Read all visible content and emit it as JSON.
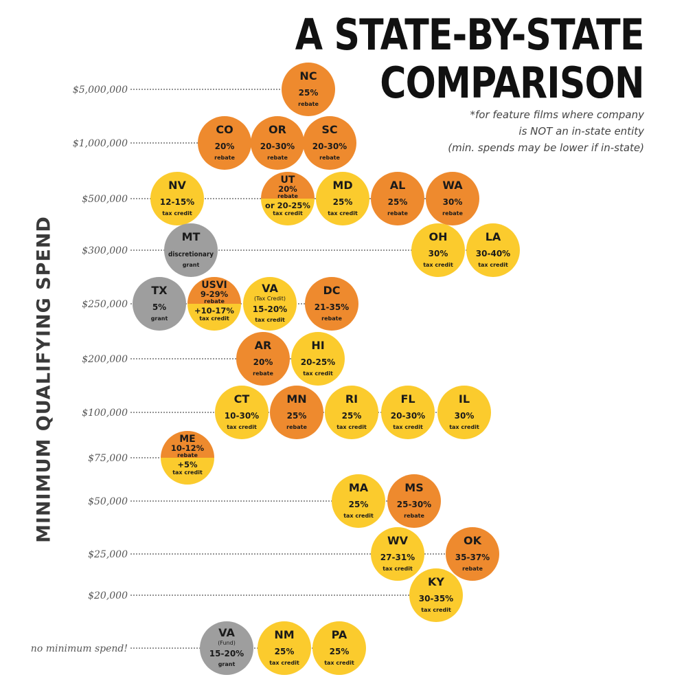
{
  "header": {
    "title_line1": "A STATE-BY-STATE",
    "title_line2": "COMPARISON",
    "note_line1": "*for feature films where company",
    "note_line2": "is NOT an in-state entity",
    "note_line3": "(min. spends may be lower if in-state)"
  },
  "chart_data": {
    "type": "scatter",
    "title": "A STATE-BY-STATE COMPARISON",
    "ylabel": "MINIMUM QUALIFYING SPEND",
    "colors": {
      "rebate": "#EE8A2E",
      "tax_credit": "#FBCB2D",
      "grant": "#9E9E9E",
      "line": "#555555"
    },
    "categories": [
      "$5,000,000",
      "$1,000,000",
      "$500,000",
      "$300,000",
      "$250,000",
      "$200,000",
      "$100,000",
      "$75,000",
      "$50,000",
      "$25,000",
      "$20,000",
      "no minimum spend!"
    ],
    "rows": [
      {
        "label": "$5,000,000",
        "states": [
          {
            "state": "NC",
            "kind": "rebate",
            "value": "25%",
            "type_label": "rebate"
          }
        ]
      },
      {
        "label": "$1,000,000",
        "states": [
          {
            "state": "CO",
            "kind": "rebate",
            "value": "20%",
            "type_label": "rebate"
          },
          {
            "state": "OR",
            "kind": "rebate",
            "value": "20-30%",
            "type_label": "rebate"
          },
          {
            "state": "SC",
            "kind": "rebate",
            "value": "20-30%",
            "type_label": "rebate"
          }
        ]
      },
      {
        "label": "$500,000",
        "states": [
          {
            "state": "NV",
            "kind": "tax_credit",
            "value": "12-15%",
            "type_label": "tax credit"
          },
          {
            "state": "UT",
            "kind": "split",
            "value": "20%",
            "type_label": "rebate",
            "value2": "or 20-25%",
            "type_label2": "tax credit"
          },
          {
            "state": "MD",
            "kind": "tax_credit",
            "value": "25%",
            "type_label": "tax credit"
          },
          {
            "state": "AL",
            "kind": "rebate",
            "value": "25%",
            "type_label": "rebate"
          },
          {
            "state": "WA",
            "kind": "rebate",
            "value": "30%",
            "type_label": "rebate"
          }
        ]
      },
      {
        "label": "$300,000",
        "states": [
          {
            "state": "MT",
            "kind": "grant",
            "value": "discretionary",
            "type_label": "grant"
          },
          {
            "state": "OH",
            "kind": "tax_credit",
            "value": "30%",
            "type_label": "tax credit"
          },
          {
            "state": "LA",
            "kind": "tax_credit",
            "value": "30-40%",
            "type_label": "tax credit"
          }
        ]
      },
      {
        "label": "$250,000",
        "states": [
          {
            "state": "TX",
            "kind": "grant",
            "value": "5%",
            "type_label": "grant"
          },
          {
            "state": "USVI",
            "kind": "split",
            "value": "9-29%",
            "type_label": "rebate",
            "value2": "+10-17%",
            "type_label2": "tax credit"
          },
          {
            "state": "VA",
            "kind": "tax_credit",
            "sub": "(Tax Credit)",
            "value": "15-20%",
            "type_label": "tax credit"
          },
          {
            "state": "DC",
            "kind": "rebate",
            "value": "21-35%",
            "type_label": "rebate"
          }
        ]
      },
      {
        "label": "$200,000",
        "states": [
          {
            "state": "AR",
            "kind": "rebate",
            "value": "20%",
            "type_label": "rebate"
          },
          {
            "state": "HI",
            "kind": "tax_credit",
            "value": "20-25%",
            "type_label": "tax credit"
          }
        ]
      },
      {
        "label": "$100,000",
        "states": [
          {
            "state": "CT",
            "kind": "tax_credit",
            "value": "10-30%",
            "type_label": "tax credit"
          },
          {
            "state": "MN",
            "kind": "rebate",
            "value": "25%",
            "type_label": "rebate"
          },
          {
            "state": "RI",
            "kind": "tax_credit",
            "value": "25%",
            "type_label": "tax credit"
          },
          {
            "state": "FL",
            "kind": "tax_credit",
            "value": "20-30%",
            "type_label": "tax credit"
          },
          {
            "state": "IL",
            "kind": "tax_credit",
            "value": "30%",
            "type_label": "tax credit"
          }
        ]
      },
      {
        "label": "$75,000",
        "states": [
          {
            "state": "ME",
            "kind": "split",
            "value": "10-12%",
            "type_label": "rebate",
            "value2": "+5%",
            "type_label2": "tax credit"
          }
        ]
      },
      {
        "label": "$50,000",
        "states": [
          {
            "state": "MA",
            "kind": "tax_credit",
            "value": "25%",
            "type_label": "tax credit"
          },
          {
            "state": "MS",
            "kind": "rebate",
            "value": "25-30%",
            "type_label": "rebate"
          }
        ]
      },
      {
        "label": "$25,000",
        "states": [
          {
            "state": "WV",
            "kind": "tax_credit",
            "value": "27-31%",
            "type_label": "tax credit"
          },
          {
            "state": "OK",
            "kind": "rebate",
            "value": "35-37%",
            "type_label": "rebate"
          }
        ]
      },
      {
        "label": "$20,000",
        "states": [
          {
            "state": "KY",
            "kind": "tax_credit",
            "value": "30-35%",
            "type_label": "tax credit"
          }
        ]
      },
      {
        "label": "no minimum spend!",
        "states": [
          {
            "state": "VA",
            "kind": "grant",
            "sub": "(Fund)",
            "value": "15-20%",
            "type_label": "grant"
          },
          {
            "state": "NM",
            "kind": "tax_credit",
            "value": "25%",
            "type_label": "tax credit"
          },
          {
            "state": "PA",
            "kind": "tax_credit",
            "value": "25%",
            "type_label": "tax credit"
          }
        ]
      }
    ]
  }
}
